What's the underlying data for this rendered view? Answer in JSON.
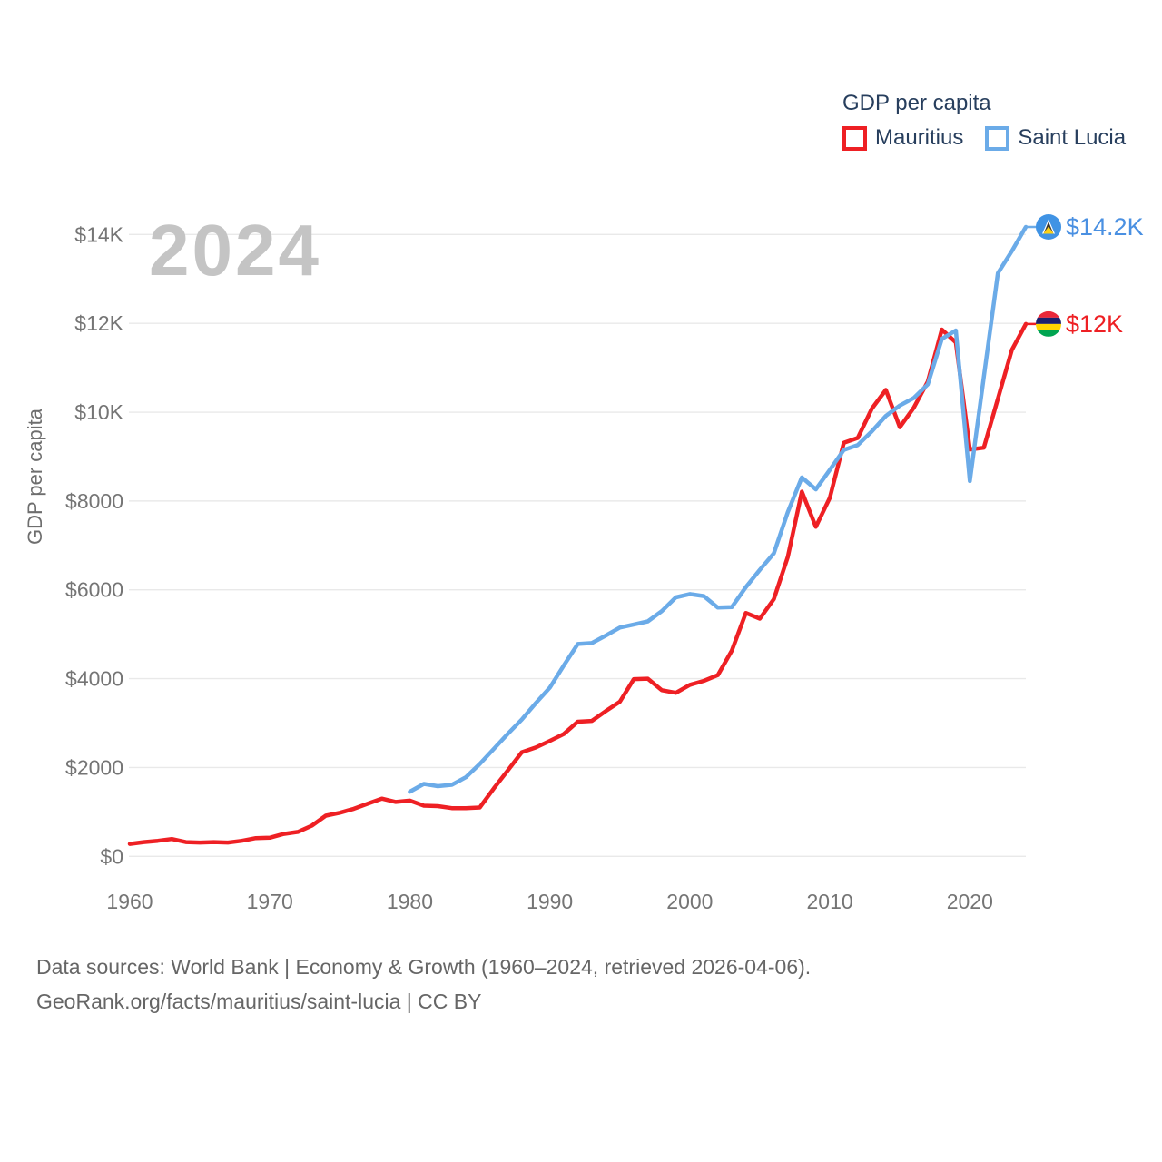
{
  "watermark": "2024",
  "legend": {
    "title": "GDP per capita",
    "series": [
      {
        "label": "Mauritius",
        "color": "#ee2024"
      },
      {
        "label": "Saint Lucia",
        "color": "#6babe8"
      }
    ]
  },
  "end_labels": [
    {
      "series": "Saint Lucia",
      "value_label": "$14.2K",
      "color": "#4a90e2",
      "flag": "saint-lucia-flag"
    },
    {
      "series": "Mauritius",
      "value_label": "$12K",
      "color": "#ee2024",
      "flag": "mauritius-flag"
    }
  ],
  "footer": {
    "line1": "Data sources: World Bank | Economy & Growth (1960–2024, retrieved 2026-04-06).",
    "line2": "GeoRank.org/facts/mauritius/saint-lucia | CC BY"
  },
  "chart_data": {
    "type": "line",
    "title": "GDP per capita",
    "xlabel": "",
    "ylabel": "GDP per capita",
    "xlim": [
      1960,
      2024
    ],
    "ylim": [
      0,
      14000
    ],
    "grid": "horizontal",
    "legend_position": "top-right",
    "x_ticks": [
      1960,
      1970,
      1980,
      1990,
      2000,
      2010,
      2020
    ],
    "y_ticks": [
      {
        "value": 0,
        "label": "$0"
      },
      {
        "value": 2000,
        "label": "$2000"
      },
      {
        "value": 4000,
        "label": "$4000"
      },
      {
        "value": 6000,
        "label": "$6000"
      },
      {
        "value": 8000,
        "label": "$8000"
      },
      {
        "value": 10000,
        "label": "$10K"
      },
      {
        "value": 12000,
        "label": "$12K"
      },
      {
        "value": 14000,
        "label": "$14K"
      }
    ],
    "series": [
      {
        "name": "Mauritius",
        "color": "#ee2024",
        "x": [
          1960,
          1961,
          1962,
          1963,
          1964,
          1965,
          1966,
          1967,
          1968,
          1969,
          1970,
          1971,
          1972,
          1973,
          1974,
          1975,
          1976,
          1977,
          1978,
          1979,
          1980,
          1981,
          1982,
          1983,
          1984,
          1985,
          1986,
          1987,
          1988,
          1989,
          1990,
          1991,
          1992,
          1993,
          1994,
          1995,
          1996,
          1997,
          1998,
          1999,
          2000,
          2001,
          2002,
          2003,
          2004,
          2005,
          2006,
          2007,
          2008,
          2009,
          2010,
          2011,
          2012,
          2013,
          2014,
          2015,
          2016,
          2017,
          2018,
          2019,
          2020,
          2021,
          2022,
          2023,
          2024
        ],
        "values": [
          280,
          320,
          350,
          390,
          320,
          310,
          320,
          310,
          350,
          410,
          420,
          505,
          550,
          690,
          915,
          980,
          1070,
          1185,
          1300,
          1225,
          1255,
          1140,
          1130,
          1085,
          1085,
          1100,
          1530,
          1935,
          2345,
          2450,
          2600,
          2755,
          3030,
          3050,
          3270,
          3480,
          3990,
          4000,
          3740,
          3680,
          3860,
          3950,
          4080,
          4630,
          5480,
          5350,
          5790,
          6740,
          8210,
          7420,
          8070,
          9310,
          9420,
          10080,
          10500,
          9660,
          10100,
          10690,
          11860,
          11570,
          9160,
          9200,
          10300,
          11400,
          11985
        ]
      },
      {
        "name": "Saint Lucia",
        "color": "#6babe8",
        "x": [
          1980,
          1981,
          1982,
          1983,
          1984,
          1985,
          1986,
          1987,
          1988,
          1989,
          1990,
          1991,
          1992,
          1993,
          1994,
          1995,
          1996,
          1997,
          1998,
          1999,
          2000,
          2001,
          2002,
          2003,
          2004,
          2005,
          2006,
          2007,
          2008,
          2009,
          2010,
          2011,
          2012,
          2013,
          2014,
          2015,
          2016,
          2017,
          2018,
          2019,
          2020,
          2021,
          2022,
          2023,
          2024
        ],
        "values": [
          1455,
          1630,
          1580,
          1610,
          1780,
          2080,
          2420,
          2760,
          3080,
          3450,
          3800,
          4300,
          4780,
          4800,
          4970,
          5150,
          5220,
          5290,
          5520,
          5830,
          5905,
          5860,
          5600,
          5610,
          6060,
          6450,
          6820,
          7750,
          8530,
          8260,
          8700,
          9150,
          9260,
          9570,
          9915,
          10150,
          10320,
          10625,
          11650,
          11840,
          8450,
          10790,
          13130,
          13625,
          14170
        ]
      }
    ]
  }
}
